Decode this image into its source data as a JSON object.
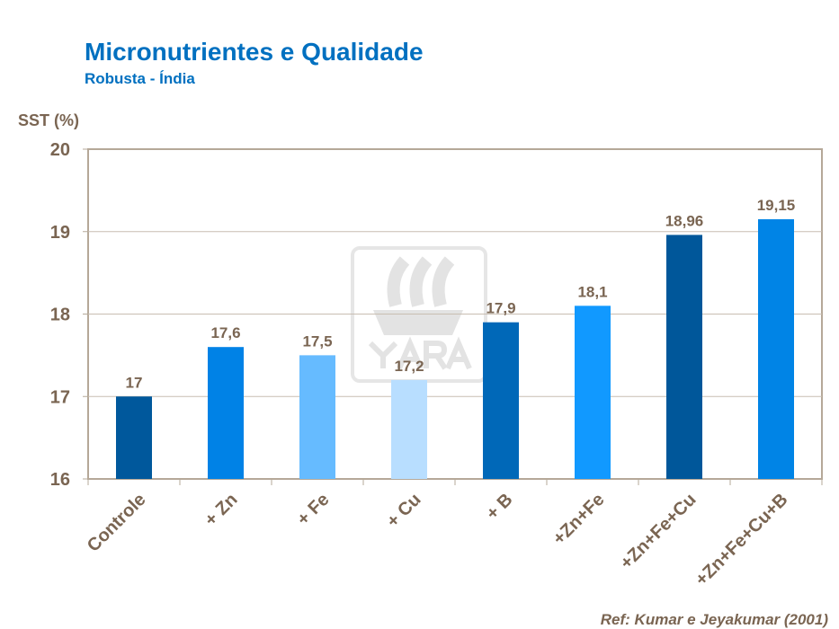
{
  "chart_data": {
    "type": "bar",
    "title": "Micronutrientes e Qualidade",
    "subtitle": "Robusta - Índia",
    "ylabel": "SST (%)",
    "xlabel": "",
    "ylim": [
      16,
      20
    ],
    "yticks": [
      "16",
      "17",
      "18",
      "19",
      "20"
    ],
    "grid": true,
    "categories": [
      "Controle",
      "+ Zn",
      "+ Fe",
      "+ Cu",
      "+ B",
      "+Zn+Fe",
      "+Zn+Fe+Cu",
      "+Zn+Fe+Cu+B"
    ],
    "values": [
      17,
      17.6,
      17.5,
      17.2,
      17.9,
      18.1,
      18.96,
      19.15
    ],
    "data_labels": [
      "17",
      "17,6",
      "17,5",
      "17,2",
      "17,9",
      "18,1",
      "18,96",
      "19,15"
    ],
    "colors": [
      "#00589C",
      "#0082E6",
      "#66BBFF",
      "#B8DEFF",
      "#0068B8",
      "#1199FF",
      "#00579A",
      "#0084E6"
    ],
    "reference": "Ref: Kumar e Jeyakumar (2001)",
    "watermark": "YARA"
  }
}
